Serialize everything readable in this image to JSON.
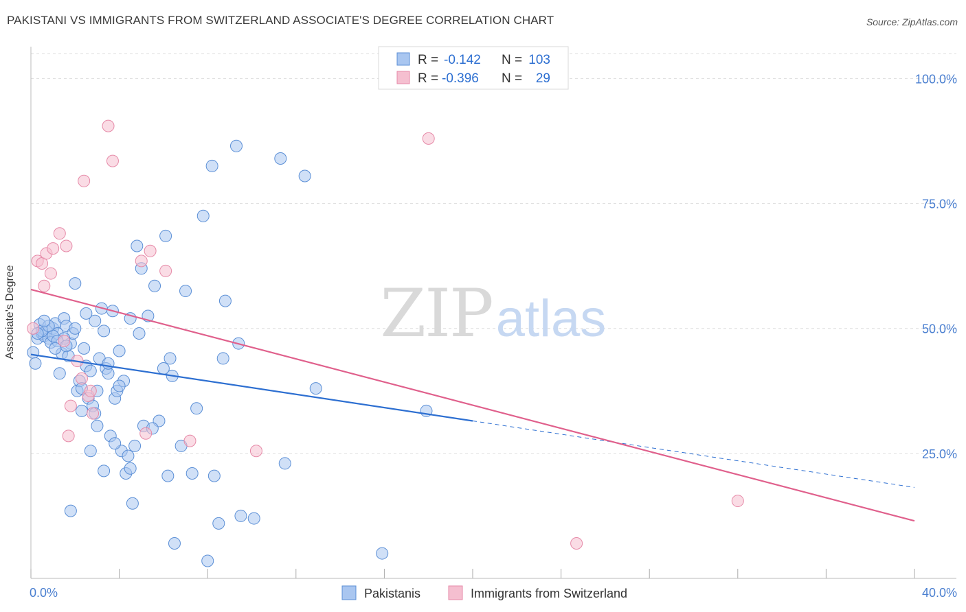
{
  "title": "PAKISTANI VS IMMIGRANTS FROM SWITZERLAND ASSOCIATE'S DEGREE CORRELATION CHART",
  "source": "Source: ZipAtlas.com",
  "watermark": {
    "zip": "ZIP",
    "atlas": "atlas"
  },
  "colors": {
    "blue_fill": "#a9c6f0",
    "blue_stroke": "#5b8fd6",
    "blue_line": "#2d6fd1",
    "pink_fill": "#f5bfd0",
    "pink_stroke": "#e68aa8",
    "pink_line": "#e0608c",
    "axis_text": "#4a7fd0",
    "grid": "#dddddd"
  },
  "legend_box": {
    "rows": [
      {
        "r_label": "R =",
        "r_value": "-0.142",
        "n_label": "N =",
        "n_value": "103",
        "series": "blue"
      },
      {
        "r_label": "R =",
        "r_value": "-0.396",
        "n_label": "N =",
        "n_value": "29",
        "series": "pink"
      }
    ]
  },
  "chart_data": {
    "type": "scatter",
    "title": "PAKISTANI VS IMMIGRANTS FROM SWITZERLAND ASSOCIATE'S DEGREE CORRELATION CHART",
    "xlabel": "",
    "ylabel": "Associate's Degree",
    "xlim": [
      0,
      40
    ],
    "ylim": [
      0,
      105
    ],
    "x_tick_labels": [
      "0.0%",
      "40.0%"
    ],
    "y_ticks": [
      25,
      50,
      75,
      100
    ],
    "y_tick_labels": [
      "25.0%",
      "50.0%",
      "75.0%",
      "100.0%"
    ],
    "grid": true,
    "legend": [
      "Pakistanis",
      "Immigrants from Switzerland"
    ],
    "series": [
      {
        "name": "Pakistanis",
        "color": "#a9c6f0",
        "r": -0.142,
        "n": 103,
        "trend": {
          "x0": 0,
          "y0": 44.8,
          "x1": 20,
          "y1": 31.5,
          "dashed_to_x": 40,
          "dashed_to_y": 18.2
        },
        "points": [
          [
            0.1,
            45.2
          ],
          [
            0.2,
            43.0
          ],
          [
            0.3,
            48.0
          ],
          [
            0.4,
            50.8
          ],
          [
            0.5,
            49.0
          ],
          [
            0.6,
            48.5
          ],
          [
            0.7,
            49.5
          ],
          [
            0.8,
            48.0
          ],
          [
            0.9,
            47.2
          ],
          [
            1.0,
            50.0
          ],
          [
            1.1,
            51.0
          ],
          [
            1.2,
            49.0
          ],
          [
            1.3,
            41.0
          ],
          [
            1.4,
            45.0
          ],
          [
            1.5,
            52.0
          ],
          [
            1.6,
            50.5
          ],
          [
            1.7,
            44.5
          ],
          [
            1.8,
            47.0
          ],
          [
            1.9,
            49.0
          ],
          [
            2.0,
            59.0
          ],
          [
            2.1,
            37.5
          ],
          [
            2.2,
            39.5
          ],
          [
            2.3,
            38.0
          ],
          [
            2.4,
            46.0
          ],
          [
            2.5,
            53.0
          ],
          [
            2.6,
            36.0
          ],
          [
            2.7,
            25.5
          ],
          [
            2.8,
            34.5
          ],
          [
            2.9,
            33.0
          ],
          [
            3.0,
            37.5
          ],
          [
            3.1,
            44.0
          ],
          [
            3.2,
            54.0
          ],
          [
            3.3,
            21.5
          ],
          [
            3.4,
            42.0
          ],
          [
            3.5,
            41.0
          ],
          [
            3.6,
            28.5
          ],
          [
            3.7,
            53.5
          ],
          [
            3.8,
            36.0
          ],
          [
            3.9,
            37.5
          ],
          [
            4.0,
            45.5
          ],
          [
            4.1,
            25.5
          ],
          [
            4.2,
            39.5
          ],
          [
            4.3,
            21.0
          ],
          [
            4.4,
            24.5
          ],
          [
            4.5,
            22.0
          ],
          [
            4.6,
            15.0
          ],
          [
            4.7,
            26.5
          ],
          [
            4.8,
            66.5
          ],
          [
            4.9,
            49.0
          ],
          [
            5.0,
            62.0
          ],
          [
            5.1,
            30.5
          ],
          [
            5.3,
            52.5
          ],
          [
            5.6,
            58.5
          ],
          [
            5.8,
            31.5
          ],
          [
            6.0,
            42.0
          ],
          [
            6.1,
            68.5
          ],
          [
            6.2,
            20.5
          ],
          [
            6.3,
            44.0
          ],
          [
            6.4,
            40.5
          ],
          [
            6.5,
            7.0
          ],
          [
            7.0,
            57.5
          ],
          [
            7.3,
            21.0
          ],
          [
            7.5,
            34.0
          ],
          [
            7.8,
            72.5
          ],
          [
            8.2,
            82.5
          ],
          [
            8.3,
            20.5
          ],
          [
            8.5,
            11.0
          ],
          [
            8.7,
            44.0
          ],
          [
            8.8,
            55.5
          ],
          [
            9.3,
            86.5
          ],
          [
            9.5,
            12.5
          ],
          [
            10.1,
            12.0
          ],
          [
            11.3,
            84.0
          ],
          [
            11.5,
            23.0
          ],
          [
            12.4,
            80.5
          ],
          [
            12.9,
            38.0
          ],
          [
            15.9,
            5.0
          ],
          [
            17.9,
            33.5
          ],
          [
            0.5,
            49.5
          ],
          [
            1.0,
            48.5
          ],
          [
            1.5,
            48.0
          ],
          [
            2.0,
            50.0
          ],
          [
            3.5,
            43.0
          ],
          [
            4.0,
            38.5
          ],
          [
            2.5,
            42.5
          ],
          [
            0.8,
            50.5
          ],
          [
            1.2,
            47.5
          ],
          [
            3.0,
            30.5
          ],
          [
            2.7,
            41.5
          ],
          [
            5.5,
            30.0
          ],
          [
            6.8,
            26.5
          ],
          [
            1.8,
            13.5
          ],
          [
            8.0,
            3.5
          ],
          [
            3.8,
            27.0
          ],
          [
            9.4,
            47.0
          ],
          [
            2.3,
            33.5
          ],
          [
            1.6,
            46.5
          ],
          [
            0.3,
            49.0
          ],
          [
            4.5,
            52.0
          ],
          [
            2.9,
            51.5
          ],
          [
            1.1,
            46.0
          ],
          [
            3.3,
            49.5
          ],
          [
            0.6,
            51.5
          ]
        ]
      },
      {
        "name": "Immigrants from Switzerland",
        "color": "#f5bfd0",
        "r": -0.396,
        "n": 29,
        "trend": {
          "x0": 0,
          "y0": 57.8,
          "x1": 40,
          "y1": 11.5
        },
        "points": [
          [
            0.1,
            50.0
          ],
          [
            0.3,
            63.5
          ],
          [
            0.5,
            63.0
          ],
          [
            0.6,
            58.5
          ],
          [
            0.7,
            65.0
          ],
          [
            0.9,
            61.0
          ],
          [
            1.0,
            66.0
          ],
          [
            1.3,
            69.0
          ],
          [
            1.5,
            47.5
          ],
          [
            1.6,
            66.5
          ],
          [
            1.7,
            28.5
          ],
          [
            1.8,
            34.5
          ],
          [
            2.1,
            43.5
          ],
          [
            2.3,
            40.0
          ],
          [
            2.4,
            79.5
          ],
          [
            2.6,
            36.5
          ],
          [
            2.7,
            37.5
          ],
          [
            2.8,
            33.0
          ],
          [
            3.5,
            90.5
          ],
          [
            3.7,
            83.5
          ],
          [
            5.0,
            63.5
          ],
          [
            5.2,
            29.0
          ],
          [
            5.4,
            65.5
          ],
          [
            6.1,
            61.5
          ],
          [
            7.2,
            27.5
          ],
          [
            10.2,
            25.5
          ],
          [
            18.0,
            88.0
          ],
          [
            24.7,
            7.0
          ],
          [
            32.0,
            15.5
          ]
        ]
      }
    ]
  }
}
